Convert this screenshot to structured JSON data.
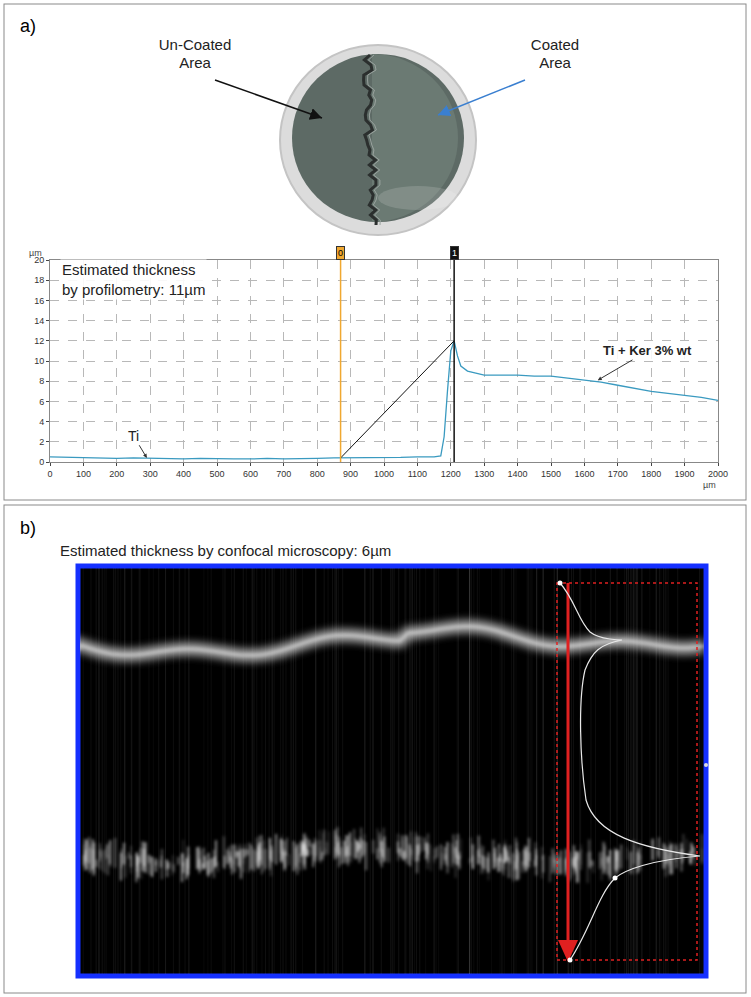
{
  "panel_a": {
    "letter": "a)",
    "photo_labels": {
      "left": "Un-Coated Area",
      "right": "Coated Area"
    }
  },
  "chart_data": {
    "type": "line",
    "x": [
      0,
      50,
      100,
      150,
      200,
      250,
      300,
      350,
      400,
      450,
      500,
      550,
      600,
      650,
      700,
      750,
      800,
      850,
      900,
      950,
      1000,
      1050,
      1100,
      1150,
      1170,
      1180,
      1190,
      1200,
      1210,
      1220,
      1230,
      1250,
      1275,
      1300,
      1350,
      1400,
      1450,
      1500,
      1550,
      1600,
      1650,
      1700,
      1750,
      1800,
      1850,
      1900,
      1950,
      2000
    ],
    "values": [
      0.5,
      0.45,
      0.4,
      0.4,
      0.35,
      0.4,
      0.35,
      0.3,
      0.3,
      0.35,
      0.3,
      0.3,
      0.3,
      0.35,
      0.3,
      0.3,
      0.35,
      0.4,
      0.4,
      0.45,
      0.4,
      0.45,
      0.5,
      0.5,
      0.6,
      2.5,
      7,
      11,
      12,
      10.5,
      9.5,
      9,
      8.8,
      8.6,
      8.6,
      8.6,
      8.5,
      8.5,
      8.3,
      8.1,
      7.9,
      7.6,
      7.3,
      7.0,
      6.8,
      6.6,
      6.4,
      6.1
    ],
    "color": "#3a9ac0",
    "xlim": [
      0,
      2000
    ],
    "xticks": [
      0,
      100,
      200,
      300,
      400,
      500,
      600,
      700,
      800,
      900,
      1000,
      1100,
      1200,
      1300,
      1400,
      1500,
      1600,
      1700,
      1800,
      1900,
      2000
    ],
    "xlabel": "µm",
    "ylim": [
      0,
      20
    ],
    "yticks": [
      0,
      2,
      4,
      6,
      8,
      10,
      12,
      14,
      16,
      18,
      20
    ],
    "ylabel": "µm",
    "grid": true,
    "cursors": [
      {
        "label": "0",
        "x": 870,
        "color": "#f0a830"
      },
      {
        "label": "1",
        "x": 1210,
        "color": "#111111"
      }
    ],
    "cursor_line": {
      "x": [
        870,
        1210
      ],
      "values": [
        0.4,
        12
      ]
    },
    "annotations": [
      {
        "text": "Estimated thickness by profilometry: 11µm",
        "x": 30,
        "y": 16
      },
      {
        "text": "Ti",
        "x": 290,
        "y": 0.4,
        "text_x": 250,
        "text_y": 2.6
      },
      {
        "text": "Ti + Ker 3% wt",
        "x": 1640,
        "y": 8.1,
        "text_x": 1790,
        "text_y": 11
      }
    ]
  },
  "panel_b": {
    "letter": "b)",
    "title": "Estimated thickness by confocal microscopy: 6µm"
  }
}
